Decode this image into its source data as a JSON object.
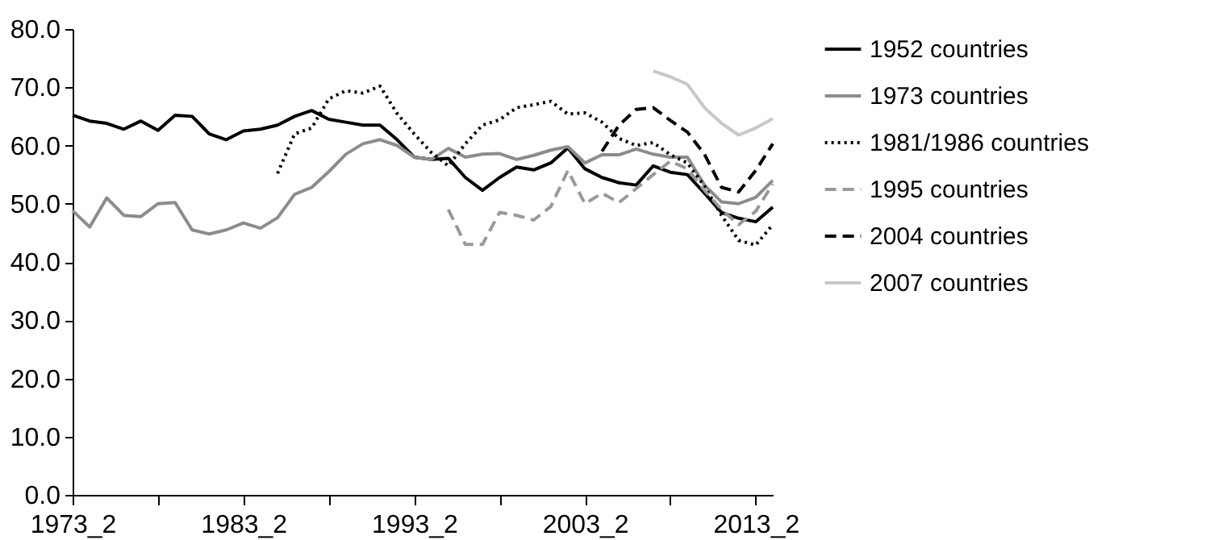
{
  "chart_data": {
    "type": "line",
    "categories": [
      "1973_2",
      null,
      null,
      null,
      null,
      null,
      null,
      null,
      null,
      null,
      "1983_2",
      null,
      null,
      null,
      null,
      null,
      null,
      null,
      null,
      null,
      "1993_2",
      null,
      null,
      null,
      null,
      null,
      null,
      null,
      null,
      null,
      "2003_2",
      null,
      null,
      null,
      null,
      null,
      null,
      null,
      null,
      null,
      "2013_2",
      null
    ],
    "ylim": [
      0,
      80
    ],
    "yticks": [
      {
        "value": 0,
        "label": "0.0"
      },
      {
        "value": 10,
        "label": "10.0"
      },
      {
        "value": 20,
        "label": "20.0"
      },
      {
        "value": 30,
        "label": "30.0"
      },
      {
        "value": 40,
        "label": "40.0"
      },
      {
        "value": 50,
        "label": "50.0"
      },
      {
        "value": 60,
        "label": "60.0"
      },
      {
        "value": 70,
        "label": "70.0"
      },
      {
        "value": 80,
        "label": "80.0"
      }
    ],
    "grid": false,
    "legend": "right",
    "series": [
      {
        "name": "1952 countries",
        "color": "#000000",
        "line_style": "solid",
        "values": [
          65.2,
          64.2,
          63.8,
          62.8,
          64.2,
          62.6,
          65.2,
          65.0,
          62.0,
          61.0,
          62.5,
          62.8,
          63.5,
          65.0,
          66.0,
          64.5,
          64.0,
          63.5,
          63.5,
          61.0,
          58.0,
          57.6,
          57.8,
          54.5,
          52.3,
          54.5,
          56.3,
          55.8,
          57.0,
          59.6,
          56.0,
          54.5,
          53.6,
          53.2,
          56.5,
          55.4,
          55.0,
          51.8,
          48.5,
          47.5,
          46.9,
          49.4
        ]
      },
      {
        "name": "1973 countries",
        "color": "#8c8c8c",
        "line_style": "solid",
        "values": [
          48.8,
          46.0,
          51.0,
          48.0,
          47.8,
          50.0,
          50.2,
          45.5,
          44.8,
          45.5,
          46.7,
          45.8,
          47.6,
          51.6,
          52.8,
          55.5,
          58.5,
          60.3,
          61.0,
          60.0,
          58.0,
          57.6,
          59.5,
          58.0,
          58.5,
          58.6,
          57.6,
          58.3,
          59.2,
          59.8,
          57.0,
          58.4,
          58.4,
          59.4,
          58.5,
          58.0,
          58.0,
          53.2,
          50.3,
          50.0,
          51.1,
          54.0
        ]
      },
      {
        "name": "1981/1986 countries",
        "color": "#000000",
        "line_style": "dotted",
        "values": [
          null,
          null,
          null,
          null,
          null,
          null,
          null,
          null,
          null,
          null,
          null,
          null,
          55.2,
          62.0,
          63.0,
          68.0,
          69.4,
          69.0,
          70.2,
          65.5,
          62.0,
          58.8,
          56.5,
          60.3,
          63.5,
          64.4,
          66.5,
          67.0,
          67.6,
          65.4,
          65.6,
          64.0,
          61.2,
          60.0,
          60.5,
          58.4,
          57.0,
          53.0,
          48.0,
          43.7,
          42.9,
          46.4
        ]
      },
      {
        "name": "1995 countries",
        "color": "#999999",
        "line_style": "dashed",
        "values": [
          null,
          null,
          null,
          null,
          null,
          null,
          null,
          null,
          null,
          null,
          null,
          null,
          null,
          null,
          null,
          null,
          null,
          null,
          null,
          null,
          null,
          null,
          49.0,
          43.0,
          43.0,
          48.5,
          48.0,
          47.2,
          49.5,
          55.7,
          50.0,
          51.8,
          50.2,
          52.6,
          55.0,
          57.3,
          56.0,
          52.3,
          49.0,
          46.4,
          48.7,
          53.4
        ]
      },
      {
        "name": "2004 countries",
        "color": "#000000",
        "line_style": "dashed",
        "values": [
          null,
          null,
          null,
          null,
          null,
          null,
          null,
          null,
          null,
          null,
          null,
          null,
          null,
          null,
          null,
          null,
          null,
          null,
          null,
          null,
          null,
          null,
          null,
          null,
          null,
          null,
          null,
          null,
          null,
          null,
          null,
          59.0,
          63.5,
          66.2,
          66.5,
          64.3,
          62.3,
          58.5,
          52.8,
          52.0,
          55.7,
          60.3
        ]
      },
      {
        "name": "2007 countries",
        "color": "#c8c8c8",
        "line_style": "solid",
        "values": [
          null,
          null,
          null,
          null,
          null,
          null,
          null,
          null,
          null,
          null,
          null,
          null,
          null,
          null,
          null,
          null,
          null,
          null,
          null,
          null,
          null,
          null,
          null,
          null,
          null,
          null,
          null,
          null,
          null,
          null,
          null,
          null,
          null,
          null,
          72.8,
          71.8,
          70.5,
          66.5,
          63.8,
          61.8,
          63.0,
          64.6
        ]
      }
    ]
  }
}
